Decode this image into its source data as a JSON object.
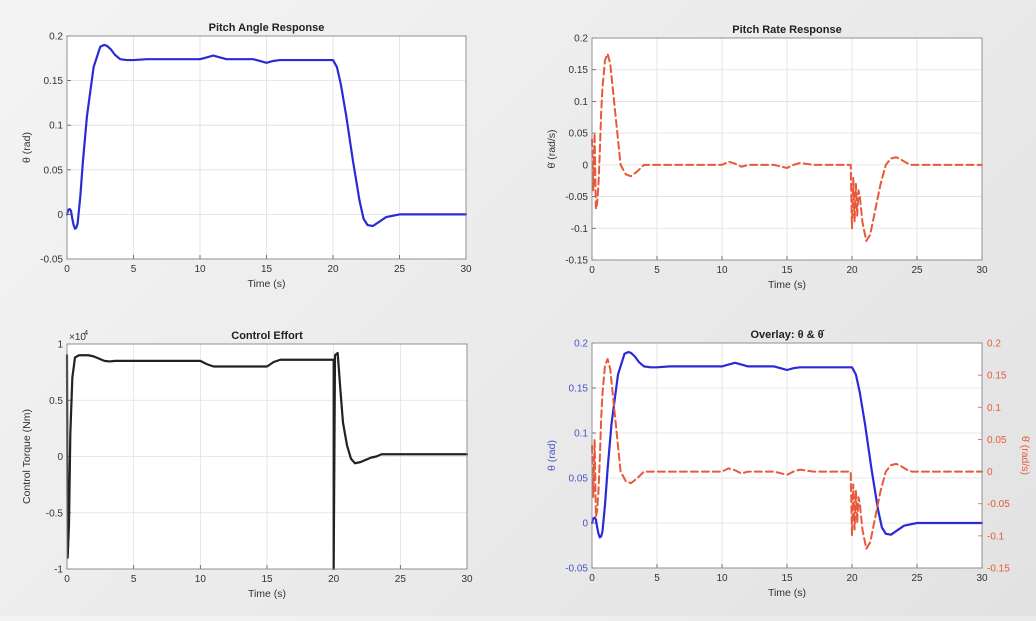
{
  "chart_data": [
    {
      "id": "pitch-angle",
      "type": "line",
      "title": "Pitch Angle Response",
      "xlabel": "Time (s)",
      "ylabel": "θ (rad)",
      "xlim": [
        0,
        30
      ],
      "ylim": [
        -0.05,
        0.2
      ],
      "x_ticks": [
        0,
        5,
        10,
        15,
        20,
        25,
        30
      ],
      "y_ticks": [
        -0.05,
        0,
        0.05,
        0.1,
        0.15,
        0.2
      ],
      "x_tick_labels": [
        "0",
        "5",
        "10",
        "15",
        "20",
        "25",
        "30"
      ],
      "y_tick_labels": [
        "-0.05",
        "0",
        "0.05",
        "0.1",
        "0.15",
        "0.2"
      ],
      "grid": true,
      "series": [
        {
          "color": "#2b2bd6",
          "style": "solid",
          "x": [
            0,
            0.1,
            0.2,
            0.3,
            0.4,
            0.5,
            0.6,
            0.7,
            0.8,
            1.0,
            1.2,
            1.5,
            2.0,
            2.5,
            2.8,
            3.0,
            3.3,
            3.6,
            4.0,
            4.5,
            5.0,
            6,
            7,
            8,
            9,
            10,
            10.5,
            11,
            11.5,
            12,
            13,
            14,
            14.5,
            15,
            15.5,
            16,
            17,
            18,
            19,
            20,
            20.3,
            20.6,
            21.0,
            21.5,
            22.0,
            22.3,
            22.6,
            23.0,
            23.5,
            24.0,
            25,
            26,
            27,
            28,
            29,
            30
          ],
          "y": [
            0,
            0.005,
            0.006,
            0.004,
            -0.005,
            -0.012,
            -0.016,
            -0.015,
            -0.01,
            0.02,
            0.06,
            0.11,
            0.165,
            0.188,
            0.19,
            0.189,
            0.185,
            0.179,
            0.174,
            0.173,
            0.173,
            0.174,
            0.174,
            0.174,
            0.174,
            0.174,
            0.176,
            0.178,
            0.176,
            0.174,
            0.174,
            0.174,
            0.172,
            0.17,
            0.172,
            0.173,
            0.173,
            0.173,
            0.173,
            0.173,
            0.165,
            0.145,
            0.11,
            0.06,
            0.015,
            -0.005,
            -0.012,
            -0.013,
            -0.008,
            -0.003,
            0,
            0,
            0,
            0,
            0,
            0
          ]
        }
      ]
    },
    {
      "id": "pitch-rate",
      "type": "line",
      "title": "Pitch Rate Response",
      "xlabel": "Time (s)",
      "ylabel": "θ̇ (rad/s)",
      "xlim": [
        0,
        30
      ],
      "ylim": [
        -0.15,
        0.2
      ],
      "x_ticks": [
        0,
        5,
        10,
        15,
        20,
        25,
        30
      ],
      "y_ticks": [
        -0.15,
        -0.1,
        -0.05,
        0,
        0.05,
        0.1,
        0.15,
        0.2
      ],
      "x_tick_labels": [
        "0",
        "5",
        "10",
        "15",
        "20",
        "25",
        "30"
      ],
      "y_tick_labels": [
        "-0.15",
        "-0.1",
        "-0.05",
        "0",
        "0.05",
        "0.1",
        "0.15",
        "0.2"
      ],
      "grid": true,
      "series": [
        {
          "color": "#e8593a",
          "style": "dashed",
          "x": [
            0,
            0.1,
            0.2,
            0.3,
            0.4,
            0.5,
            0.6,
            0.7,
            0.8,
            1.0,
            1.2,
            1.4,
            1.6,
            1.9,
            2.2,
            2.6,
            3.0,
            3.5,
            4.0,
            5,
            6,
            7,
            8,
            9,
            10,
            10.5,
            11,
            11.5,
            12,
            13,
            14,
            15,
            15.5,
            16,
            17,
            18,
            19,
            19.9,
            20.0,
            20.1,
            20.2,
            20.3,
            20.4,
            20.5,
            20.6,
            20.8,
            21.1,
            21.4,
            21.8,
            22.2,
            22.6,
            23.0,
            23.4,
            23.8,
            24.2,
            24.6,
            25,
            26,
            27,
            28,
            29,
            30
          ],
          "y": [
            0.04,
            -0.04,
            0.05,
            -0.07,
            -0.06,
            -0.03,
            0.02,
            0.08,
            0.12,
            0.165,
            0.175,
            0.16,
            0.12,
            0.06,
            0.0,
            -0.015,
            -0.018,
            -0.01,
            0.0,
            0.0,
            0.0,
            0.0,
            0.0,
            0.0,
            0.0,
            0.005,
            0.002,
            -0.003,
            0.0,
            0.0,
            0.0,
            -0.005,
            0.0,
            0.003,
            0.0,
            0.0,
            0.0,
            0.0,
            -0.1,
            -0.02,
            -0.09,
            -0.03,
            -0.08,
            -0.04,
            -0.05,
            -0.09,
            -0.12,
            -0.11,
            -0.07,
            -0.03,
            0.0,
            0.01,
            0.012,
            0.008,
            0.003,
            0.0,
            0.0,
            0.0,
            0.0,
            0.0,
            0.0,
            0.0
          ]
        }
      ]
    },
    {
      "id": "control-effort",
      "type": "line",
      "title": "Control Effort",
      "xlabel": "Time (s)",
      "ylabel": "Control Torque (Nm)",
      "exponent_label": "×10",
      "exponent_value": "4",
      "xlim": [
        0,
        30
      ],
      "ylim": [
        -1,
        1
      ],
      "x_ticks": [
        0,
        5,
        10,
        15,
        20,
        25,
        30
      ],
      "y_ticks": [
        -1,
        -0.5,
        0,
        0.5,
        1
      ],
      "x_tick_labels": [
        "0",
        "5",
        "10",
        "15",
        "20",
        "25",
        "30"
      ],
      "y_tick_labels": [
        "-1",
        "-0.5",
        "0",
        "0.5",
        "1"
      ],
      "grid": true,
      "series": [
        {
          "color": "#222222",
          "style": "solid",
          "x": [
            0,
            0.05,
            0.15,
            0.25,
            0.4,
            0.6,
            0.9,
            1.2,
            1.6,
            2.0,
            2.4,
            2.8,
            3.2,
            3.6,
            4.0,
            5,
            6,
            7,
            8,
            9,
            10,
            10.5,
            11,
            12,
            13,
            14,
            15,
            15.5,
            16,
            17,
            18,
            19,
            19.9,
            20.0,
            20.0,
            20.1,
            20.3,
            20.5,
            20.7,
            21.0,
            21.3,
            21.6,
            22.0,
            22.4,
            22.8,
            23.2,
            23.6,
            24,
            25,
            26,
            27,
            28,
            29,
            30
          ],
          "y": [
            0.9,
            -0.9,
            -0.6,
            0.2,
            0.7,
            0.88,
            0.9,
            0.9,
            0.9,
            0.89,
            0.87,
            0.85,
            0.845,
            0.85,
            0.85,
            0.85,
            0.85,
            0.85,
            0.85,
            0.85,
            0.85,
            0.82,
            0.8,
            0.8,
            0.8,
            0.8,
            0.8,
            0.84,
            0.86,
            0.86,
            0.86,
            0.86,
            0.86,
            0.86,
            -1.0,
            0.9,
            0.92,
            0.6,
            0.3,
            0.1,
            -0.02,
            -0.06,
            -0.05,
            -0.03,
            -0.01,
            0.0,
            0.02,
            0.02,
            0.02,
            0.02,
            0.02,
            0.02,
            0.02,
            0.02
          ]
        }
      ]
    },
    {
      "id": "overlay",
      "type": "line",
      "title": "Overlay: θ & θ̇",
      "xlabel": "Time (s)",
      "ylabel": "θ (rad)",
      "ylabel_right": "θ̇ (rad/s)",
      "xlim": [
        0,
        30
      ],
      "ylim": [
        -0.05,
        0.2
      ],
      "ylim_right": [
        -0.15,
        0.2
      ],
      "x_ticks": [
        0,
        5,
        10,
        15,
        20,
        25,
        30
      ],
      "y_ticks": [
        -0.05,
        0,
        0.05,
        0.1,
        0.15,
        0.2
      ],
      "y_ticks_right": [
        -0.15,
        -0.1,
        -0.05,
        0,
        0.05,
        0.1,
        0.15,
        0.2
      ],
      "x_tick_labels": [
        "0",
        "5",
        "10",
        "15",
        "20",
        "25",
        "30"
      ],
      "y_tick_labels": [
        "-0.05",
        "0",
        "0.05",
        "0.1",
        "0.15",
        "0.2"
      ],
      "y_tick_labels_right": [
        "-0.15",
        "-0.1",
        "-0.05",
        "0",
        "0.05",
        "0.1",
        "0.15",
        "0.2"
      ],
      "grid": true,
      "series": [
        {
          "color": "#2b2bd6",
          "style": "solid",
          "axis": "left",
          "x": [
            0,
            0.1,
            0.2,
            0.3,
            0.4,
            0.5,
            0.6,
            0.7,
            0.8,
            1.0,
            1.2,
            1.5,
            2.0,
            2.5,
            2.8,
            3.0,
            3.3,
            3.6,
            4.0,
            4.5,
            5.0,
            6,
            7,
            8,
            9,
            10,
            10.5,
            11,
            11.5,
            12,
            13,
            14,
            14.5,
            15,
            15.5,
            16,
            17,
            18,
            19,
            20,
            20.3,
            20.6,
            21.0,
            21.5,
            22.0,
            22.3,
            22.6,
            23.0,
            23.5,
            24.0,
            25,
            26,
            27,
            28,
            29,
            30
          ],
          "y": [
            0,
            0.005,
            0.006,
            0.004,
            -0.005,
            -0.012,
            -0.016,
            -0.015,
            -0.01,
            0.02,
            0.06,
            0.11,
            0.165,
            0.188,
            0.19,
            0.189,
            0.185,
            0.179,
            0.174,
            0.173,
            0.173,
            0.174,
            0.174,
            0.174,
            0.174,
            0.174,
            0.176,
            0.178,
            0.176,
            0.174,
            0.174,
            0.174,
            0.172,
            0.17,
            0.172,
            0.173,
            0.173,
            0.173,
            0.173,
            0.173,
            0.165,
            0.145,
            0.11,
            0.06,
            0.015,
            -0.005,
            -0.012,
            -0.013,
            -0.008,
            -0.003,
            0,
            0,
            0,
            0,
            0,
            0
          ]
        },
        {
          "color": "#e8593a",
          "style": "dashed",
          "axis": "right",
          "x": [
            0,
            0.1,
            0.2,
            0.3,
            0.4,
            0.5,
            0.6,
            0.7,
            0.8,
            1.0,
            1.2,
            1.4,
            1.6,
            1.9,
            2.2,
            2.6,
            3.0,
            3.5,
            4.0,
            5,
            6,
            7,
            8,
            9,
            10,
            10.5,
            11,
            11.5,
            12,
            13,
            14,
            15,
            15.5,
            16,
            17,
            18,
            19,
            19.9,
            20.0,
            20.1,
            20.2,
            20.3,
            20.4,
            20.5,
            20.6,
            20.8,
            21.1,
            21.4,
            21.8,
            22.2,
            22.6,
            23.0,
            23.4,
            23.8,
            24.2,
            24.6,
            25,
            26,
            27,
            28,
            29,
            30
          ],
          "y": [
            0.04,
            -0.04,
            0.05,
            -0.07,
            -0.06,
            -0.03,
            0.02,
            0.08,
            0.12,
            0.165,
            0.175,
            0.16,
            0.12,
            0.06,
            0.0,
            -0.015,
            -0.018,
            -0.01,
            0.0,
            0.0,
            0.0,
            0.0,
            0.0,
            0.0,
            0.0,
            0.005,
            0.002,
            -0.003,
            0.0,
            0.0,
            0.0,
            -0.005,
            0.0,
            0.003,
            0.0,
            0.0,
            0.0,
            0.0,
            -0.1,
            -0.02,
            -0.09,
            -0.03,
            -0.08,
            -0.04,
            -0.05,
            -0.09,
            -0.12,
            -0.11,
            -0.07,
            -0.03,
            0.0,
            0.01,
            0.012,
            0.008,
            0.003,
            0.0,
            0.0,
            0.0,
            0.0,
            0.0,
            0.0,
            0.0
          ]
        }
      ]
    }
  ]
}
